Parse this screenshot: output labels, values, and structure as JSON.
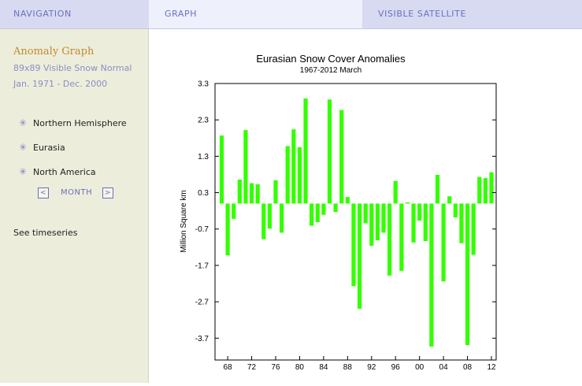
{
  "tabs": {
    "navigation": "NAVIGATION",
    "graph": "GRAPH",
    "satellite": "VISIBLE SATELLITE"
  },
  "sidebar": {
    "title": "Anomaly Graph",
    "subtitle": "89x89 Visible Snow Normal Jan. 1971 - Dec. 2000",
    "items": [
      {
        "label": "Northern Hemisphere",
        "icon": "star-bullet"
      },
      {
        "label": "Eurasia",
        "icon": "star-bullet"
      },
      {
        "label": "North America",
        "icon": "star-bullet"
      }
    ],
    "prev": "<",
    "next": ">",
    "period": "MONTH",
    "timeseries_link": "See timeseries"
  },
  "colors": {
    "bars": "#33ff00",
    "tab_text": "#6b70bf",
    "sidebar_bg": "#ededdb",
    "title_accent": "#c08a2e"
  },
  "chart_data": {
    "type": "bar",
    "title": "Eurasian Snow Cover Anomalies",
    "subtitle": "1967-2012 March",
    "ylabel": "Million Square km",
    "ylim": [
      -4.3,
      3.3
    ],
    "yticks": [
      "3.3",
      "2.3",
      "1.3",
      "0.3",
      "-0.7",
      "-1.7",
      "-2.7",
      "-3.7"
    ],
    "ytick_values": [
      3.3,
      2.3,
      1.3,
      0.3,
      -0.7,
      -1.7,
      -2.7,
      -3.7
    ],
    "xticks": [
      "68",
      "72",
      "76",
      "80",
      "84",
      "88",
      "92",
      "96",
      "00",
      "04",
      "08",
      "12"
    ],
    "xtick_years": [
      1968,
      1972,
      1976,
      1980,
      1984,
      1988,
      1992,
      1996,
      2000,
      2004,
      2008,
      2012
    ],
    "years": [
      1967,
      1968,
      1969,
      1970,
      1971,
      1972,
      1973,
      1974,
      1975,
      1976,
      1977,
      1978,
      1979,
      1980,
      1981,
      1982,
      1983,
      1984,
      1985,
      1986,
      1987,
      1988,
      1989,
      1990,
      1991,
      1992,
      1993,
      1994,
      1995,
      1996,
      1997,
      1998,
      1999,
      2000,
      2001,
      2002,
      2003,
      2004,
      2005,
      2006,
      2007,
      2008,
      2009,
      2010,
      2011,
      2012
    ],
    "values": [
      1.87,
      -1.42,
      -0.42,
      0.66,
      2.02,
      0.56,
      0.53,
      -0.98,
      -0.69,
      0.64,
      -0.8,
      1.58,
      2.04,
      1.55,
      2.89,
      -0.61,
      -0.51,
      -0.31,
      2.86,
      -0.23,
      2.57,
      0.18,
      -2.27,
      -2.89,
      -0.54,
      -1.16,
      -1.01,
      -0.8,
      -1.98,
      0.62,
      -1.85,
      0.03,
      -1.07,
      -0.47,
      -1.03,
      -3.93,
      0.79,
      -2.14,
      0.2,
      -0.38,
      -1.09,
      -3.89,
      -1.41,
      0.73,
      0.7,
      0.86
    ]
  }
}
